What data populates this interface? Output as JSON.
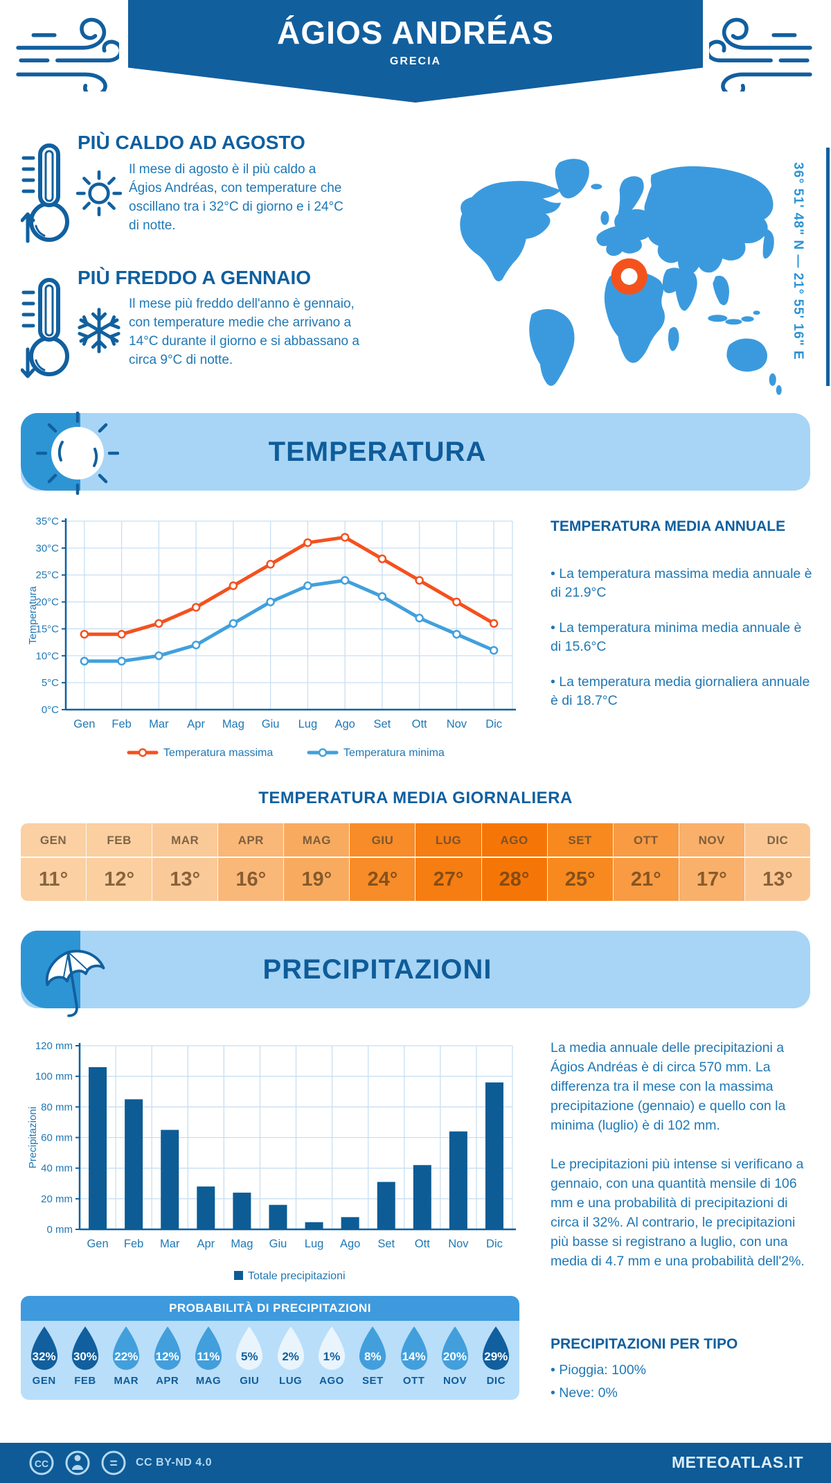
{
  "page": {
    "title": "ÁGIOS ANDRÉAS",
    "subtitle": "GRECIA",
    "coordinates": "36° 51' 48\" N — 21° 55' 16\" E"
  },
  "highlights": {
    "hot": {
      "title": "PIÙ CALDO AD AGOSTO",
      "text": "Il mese di agosto è il più caldo a Ágios Andréas, con temperature che oscillano tra i 32°C di giorno e i 24°C di notte."
    },
    "cold": {
      "title": "PIÙ FREDDO A GENNAIO",
      "text": "Il mese più freddo dell'anno è gennaio, con temperature medie che arrivano a 14°C durante il giorno e si abbassano a circa 9°C di notte."
    }
  },
  "temperature_section": {
    "banner_title": "TEMPERATURA",
    "annual": {
      "title": "TEMPERATURA MEDIA ANNUALE",
      "bullets": [
        "La temperatura massima media annuale è di 21.9°C",
        "La temperatura minima media annuale è di 15.6°C",
        "La temperatura media giornaliera annuale è di 18.7°C"
      ]
    },
    "daily": {
      "title": "TEMPERATURA MEDIA GIORNALIERA",
      "columns": [
        {
          "month": "GEN",
          "value": "11°",
          "bg": "#fbd0a2"
        },
        {
          "month": "FEB",
          "value": "12°",
          "bg": "#fbcf9f"
        },
        {
          "month": "MAR",
          "value": "13°",
          "bg": "#fac998"
        },
        {
          "month": "APR",
          "value": "16°",
          "bg": "#f9b778"
        },
        {
          "month": "MAG",
          "value": "19°",
          "bg": "#f8ab5f"
        },
        {
          "month": "GIU",
          "value": "24°",
          "bg": "#f78c29"
        },
        {
          "month": "LUG",
          "value": "27°",
          "bg": "#f67d12"
        },
        {
          "month": "AGO",
          "value": "28°",
          "bg": "#f57607"
        },
        {
          "month": "SET",
          "value": "25°",
          "bg": "#f7891f"
        },
        {
          "month": "OTT",
          "value": "21°",
          "bg": "#f89b43"
        },
        {
          "month": "NOV",
          "value": "17°",
          "bg": "#f9b06a"
        },
        {
          "month": "DIC",
          "value": "13°",
          "bg": "#fac794"
        }
      ]
    }
  },
  "precipitation_section": {
    "banner_title": "PRECIPITAZIONI",
    "paragraphs": [
      "La media annuale delle precipitazioni a Ágios Andréas è di circa 570 mm. La differenza tra il mese con la massima precipitazione (gennaio) e quello con la minima (luglio) è di 102 mm.",
      "Le precipitazioni più intense si verificano a gennaio, con una quantità mensile di 106 mm e una probabilità di precipitazioni di circa il 32%. Al contrario, le precipitazioni più basse si registrano a luglio, con una media di 4.7 mm e una probabilità dell'2%."
    ],
    "probability": {
      "title": "PROBABILITÀ DI PRECIPITAZIONI",
      "drops": [
        {
          "month": "GEN",
          "pct": "32%",
          "fill": "#115f9e",
          "text_color": "#ffffff"
        },
        {
          "month": "FEB",
          "pct": "30%",
          "fill": "#115f9e",
          "text_color": "#ffffff"
        },
        {
          "month": "MAR",
          "pct": "22%",
          "fill": "#429fdc",
          "text_color": "#ffffff"
        },
        {
          "month": "APR",
          "pct": "12%",
          "fill": "#429fdc",
          "text_color": "#ffffff"
        },
        {
          "month": "MAG",
          "pct": "11%",
          "fill": "#429fdc",
          "text_color": "#ffffff"
        },
        {
          "month": "GIU",
          "pct": "5%",
          "fill": "#e9f4fc",
          "text_color": "#115f9e"
        },
        {
          "month": "LUG",
          "pct": "2%",
          "fill": "#e9f4fc",
          "text_color": "#115f9e"
        },
        {
          "month": "AGO",
          "pct": "1%",
          "fill": "#e9f4fc",
          "text_color": "#115f9e"
        },
        {
          "month": "SET",
          "pct": "8%",
          "fill": "#429fdc",
          "text_color": "#ffffff"
        },
        {
          "month": "OTT",
          "pct": "14%",
          "fill": "#429fdc",
          "text_color": "#ffffff"
        },
        {
          "month": "NOV",
          "pct": "20%",
          "fill": "#429fdc",
          "text_color": "#ffffff"
        },
        {
          "month": "DIC",
          "pct": "29%",
          "fill": "#115f9e",
          "text_color": "#ffffff"
        }
      ]
    },
    "types": {
      "title": "PRECIPITAZIONI PER TIPO",
      "bullets": [
        "Pioggia: 100%",
        "Neve: 0%"
      ]
    }
  },
  "footer": {
    "license": "CC BY-ND 4.0",
    "site": "METEOATLAS.IT",
    "cc_label": "CC",
    "eq_label": "="
  },
  "chart_data": [
    {
      "type": "line",
      "categories": [
        "Gen",
        "Feb",
        "Mar",
        "Apr",
        "Mag",
        "Giu",
        "Lug",
        "Ago",
        "Set",
        "Ott",
        "Nov",
        "Dic"
      ],
      "series": [
        {
          "name": "Temperatura massima",
          "color": "#f4511e",
          "values": [
            14,
            14,
            16,
            19,
            23,
            27,
            31,
            32,
            28,
            24,
            20,
            16
          ]
        },
        {
          "name": "Temperatura minima",
          "color": "#41a0dc",
          "values": [
            9,
            9,
            10,
            12,
            16,
            20,
            23,
            24,
            21,
            17,
            14,
            11
          ]
        }
      ],
      "ylabel": "Temperatura",
      "y_ticks": [
        0,
        5,
        10,
        15,
        20,
        25,
        30,
        35
      ],
      "y_unit": "°C",
      "ylim": [
        0,
        35
      ],
      "grid": true,
      "legend_position": "bottom"
    },
    {
      "type": "bar",
      "categories": [
        "Gen",
        "Feb",
        "Mar",
        "Apr",
        "Mag",
        "Giu",
        "Lug",
        "Ago",
        "Set",
        "Ott",
        "Nov",
        "Dic"
      ],
      "values": [
        106,
        85,
        65,
        28,
        24,
        16,
        4.7,
        8,
        31,
        42,
        64,
        96
      ],
      "legend": "Totale precipitazioni",
      "bar_color": "#0d5c95",
      "ylabel": "Precipitazioni",
      "y_ticks": [
        0,
        20,
        40,
        60,
        80,
        100,
        120
      ],
      "y_unit": " mm",
      "ylim": [
        0,
        120
      ],
      "grid": true,
      "legend_position": "bottom"
    }
  ]
}
